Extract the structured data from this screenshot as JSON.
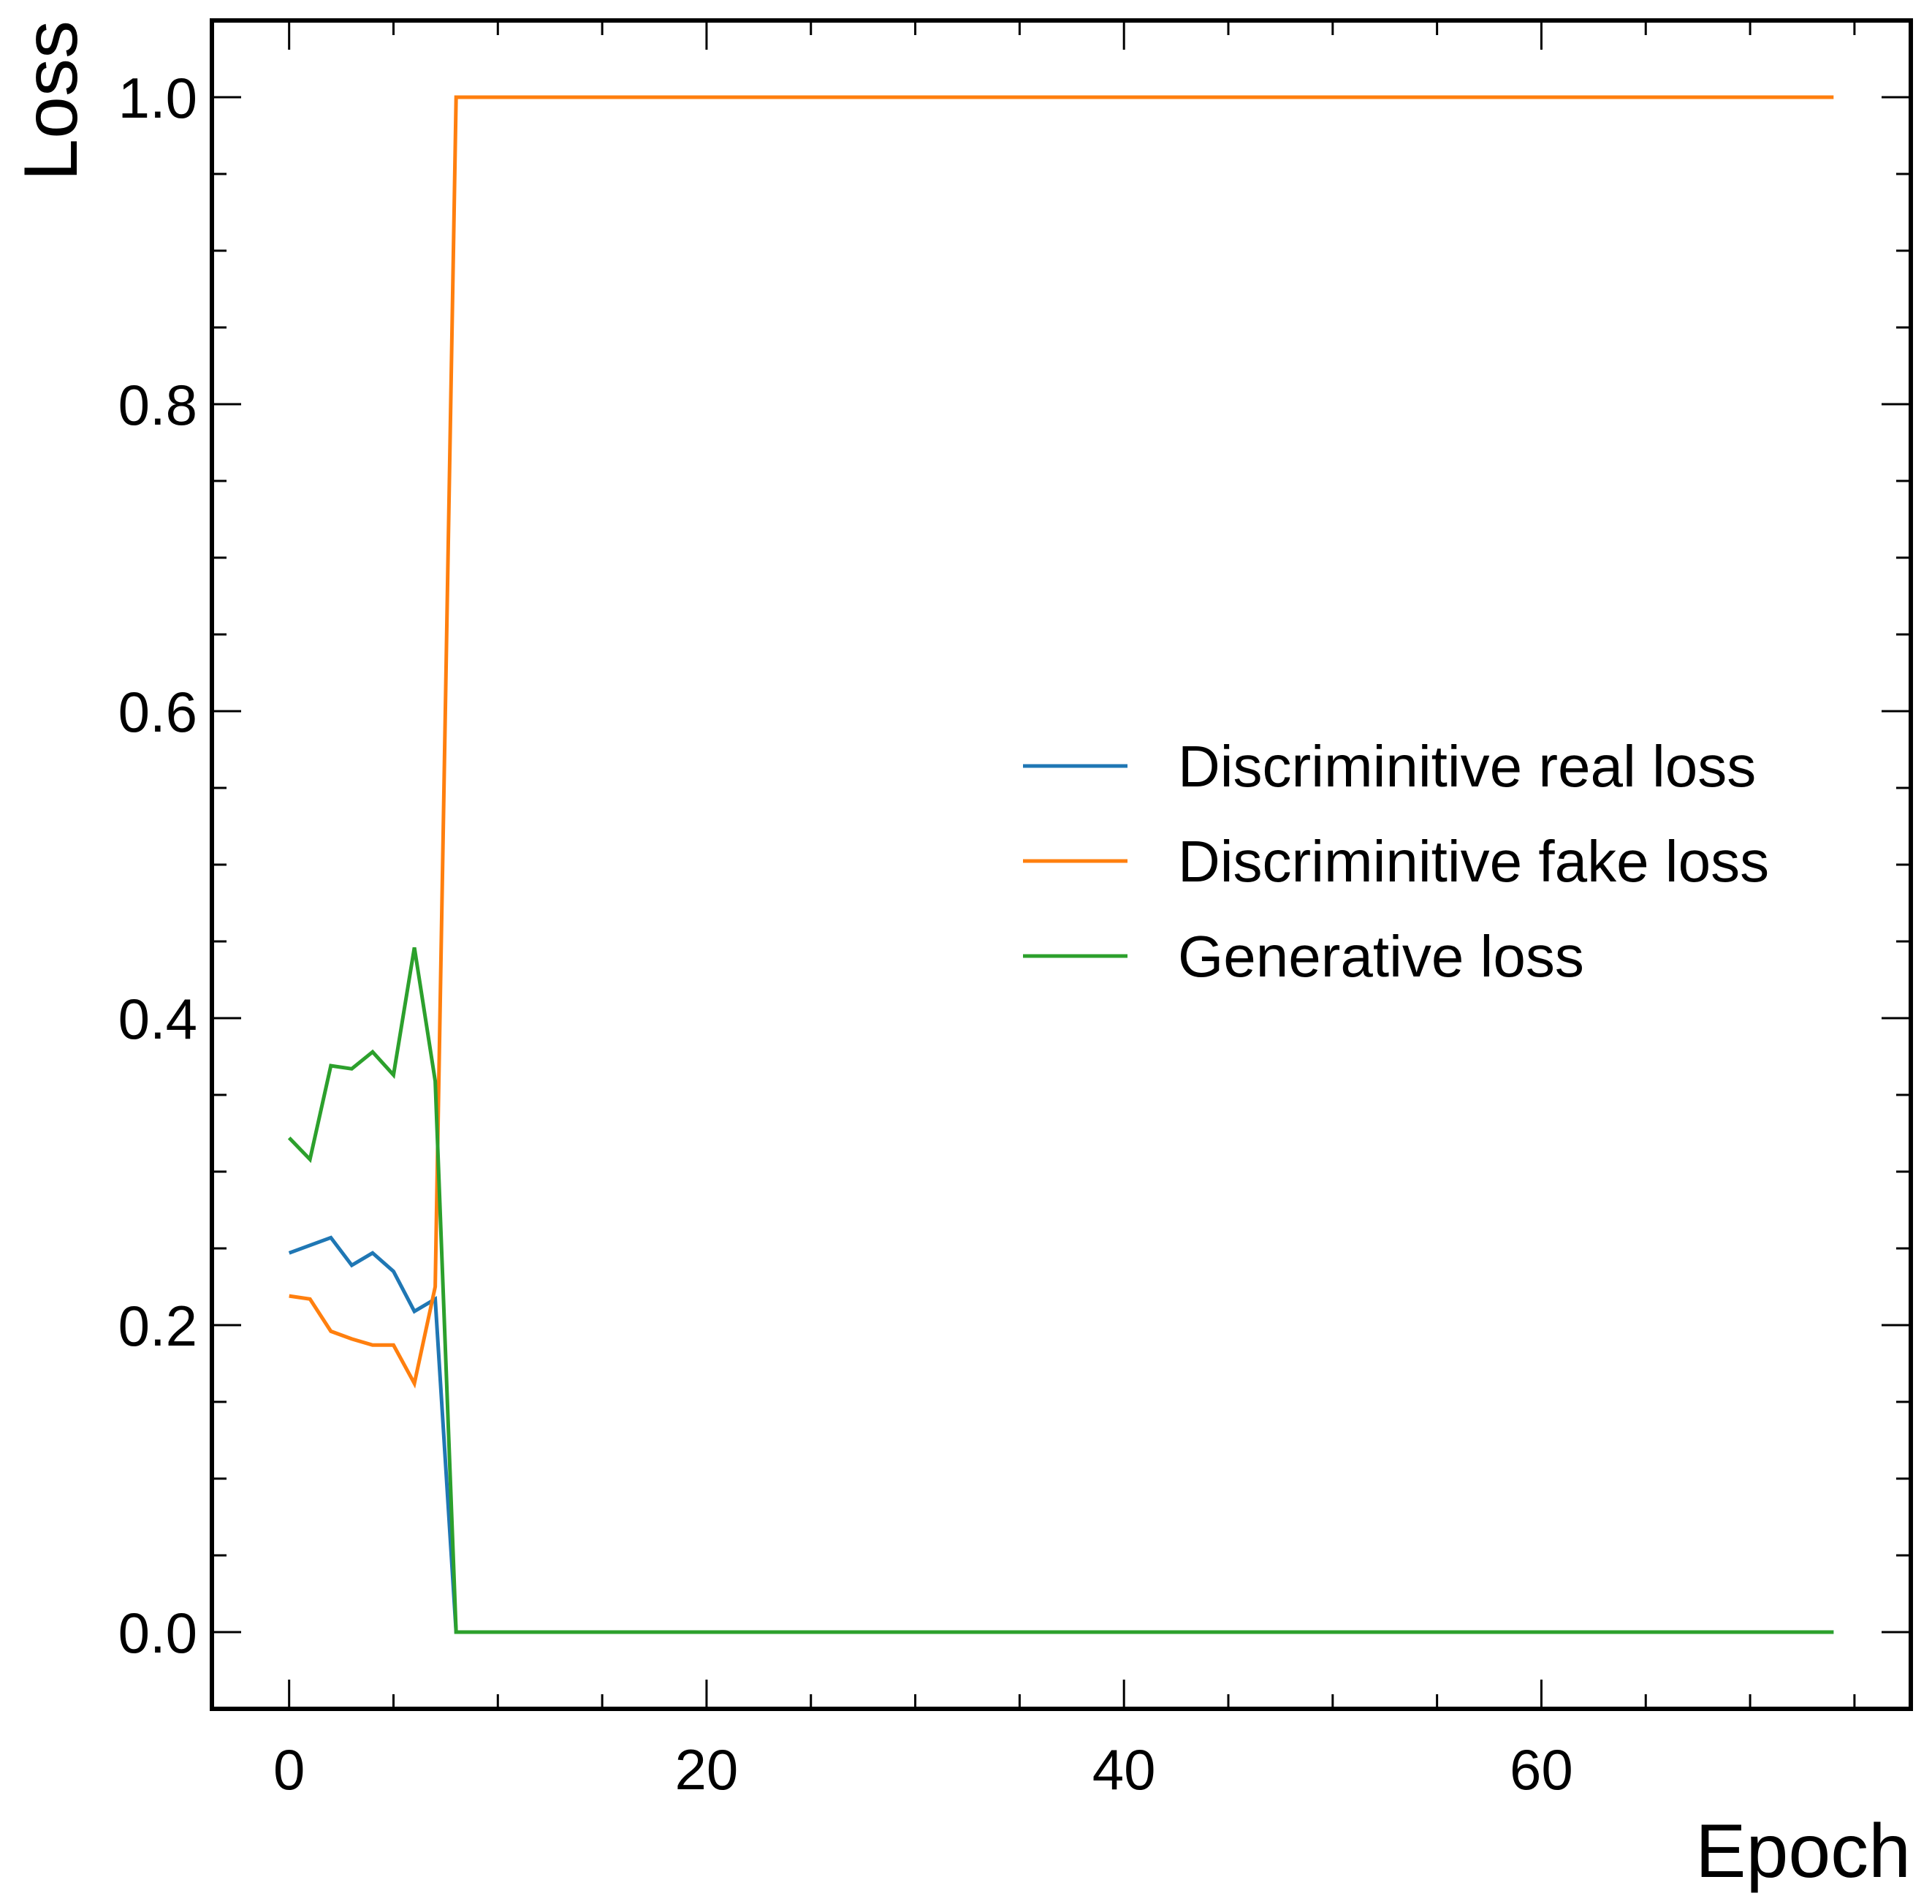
{
  "chart_data": {
    "type": "line",
    "xlabel": "Epoch",
    "ylabel": "Loss",
    "xlim": [
      -3.7,
      77.7
    ],
    "ylim": [
      -0.05,
      1.05
    ],
    "x_ticks": [
      0,
      20,
      40,
      60
    ],
    "x_ticks_labels": [
      "0",
      "20",
      "40",
      "60"
    ],
    "x_minor_step": 5,
    "y_ticks": [
      0.0,
      0.2,
      0.4,
      0.6,
      0.8,
      1.0
    ],
    "y_ticks_labels": [
      "0.0",
      "0.2",
      "0.4",
      "0.6",
      "0.8",
      "1.0"
    ],
    "y_minor_step": 0.05,
    "grid": false,
    "legend_position": "center-right",
    "series": [
      {
        "name": "Discriminitive real loss",
        "color": "#1f77b4",
        "x": [
          0,
          1,
          2,
          3,
          4,
          5,
          6,
          7,
          8,
          74
        ],
        "y": [
          0.247,
          0.252,
          0.257,
          0.239,
          0.247,
          0.235,
          0.209,
          0.217,
          0.0,
          0.0
        ]
      },
      {
        "name": "Discriminitive fake loss",
        "color": "#ff7f0e",
        "x": [
          0,
          1,
          2,
          3,
          4,
          5,
          6,
          7,
          8,
          74
        ],
        "y": [
          0.219,
          0.217,
          0.196,
          0.191,
          0.187,
          0.187,
          0.162,
          0.225,
          1.0,
          1.0
        ]
      },
      {
        "name": "Generative loss",
        "color": "#2ca02c",
        "x": [
          0,
          1,
          2,
          3,
          4,
          5,
          6,
          7,
          8,
          74
        ],
        "y": [
          0.322,
          0.308,
          0.369,
          0.367,
          0.378,
          0.363,
          0.446,
          0.359,
          0.0,
          0.0
        ]
      }
    ]
  }
}
